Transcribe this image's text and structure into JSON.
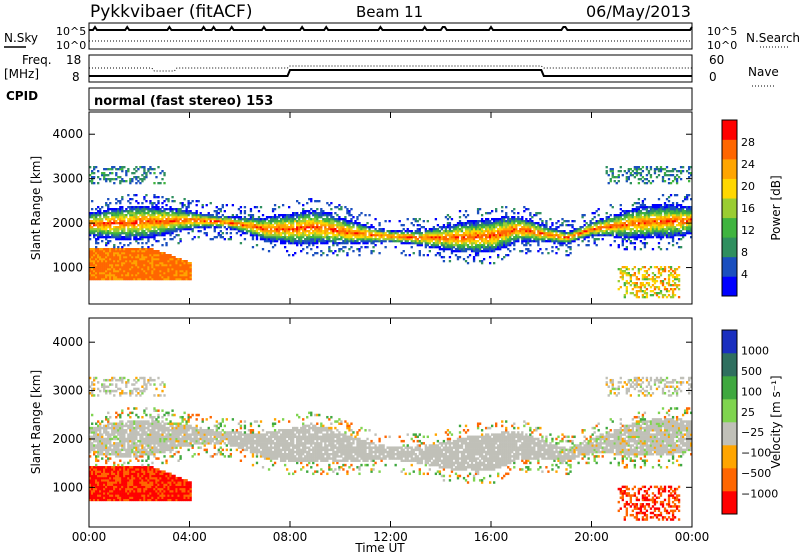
{
  "header": {
    "station": "Pykkvibaer (fitACF)",
    "beam": "Beam 11",
    "date": "06/May/2013"
  },
  "strips": {
    "nsky_label": "N.Sky",
    "nsearch_label": "N.Search",
    "freq_label_1": "Freq.",
    "freq_label_2": "[MHz]",
    "nave_label": "Nave",
    "cpid_label": "CPID",
    "cpid_value": "normal (fast stereo) 153",
    "noise_left_ticks": [
      "10^5",
      "10^0"
    ],
    "noise_right_ticks": [
      "10^5",
      "10^0"
    ],
    "freq_left_ticks": [
      "18",
      "8"
    ],
    "freq_right_ticks": [
      "60",
      "0"
    ]
  },
  "chart_data": [
    {
      "type": "heatmap",
      "panel": "power",
      "ylabel": "Slant Range [km]",
      "ylim": [
        180,
        4500
      ],
      "yticks": [
        "4000",
        "3000",
        "2000",
        "1000"
      ],
      "xlim": [
        "00:00",
        "24:00"
      ],
      "colorbar": {
        "label": "Power [dB]",
        "tick_labels": [
          "28",
          "24",
          "20",
          "16",
          "12",
          "8",
          "4"
        ],
        "colors": [
          "#0000ff",
          "#1a4fbf",
          "#2f8f5f",
          "#3fb43f",
          "#9acd32",
          "#ffd700",
          "#ffa500",
          "#ff6600",
          "#ff0000"
        ]
      },
      "scatter_band": {
        "centre_km": [
          [
            0,
            1950
          ],
          [
            2,
            2000
          ],
          [
            4,
            2050
          ],
          [
            5.5,
            2000
          ],
          [
            7,
            1850
          ],
          [
            8,
            1850
          ],
          [
            9,
            1900
          ],
          [
            10,
            1800
          ],
          [
            11.5,
            1700
          ],
          [
            13,
            1650
          ],
          [
            14.5,
            1650
          ],
          [
            16,
            1700
          ],
          [
            17,
            1850
          ],
          [
            18,
            1750
          ],
          [
            19,
            1650
          ],
          [
            20,
            1850
          ],
          [
            22,
            2000
          ],
          [
            24,
            2050
          ]
        ],
        "near_range_patch": {
          "hours": [
            0,
            4
          ],
          "km": [
            700,
            1400
          ],
          "power_db": 28
        }
      }
    },
    {
      "type": "heatmap",
      "panel": "velocity",
      "ylabel": "Slant Range [km]",
      "ylim": [
        180,
        4500
      ],
      "yticks": [
        "4000",
        "3000",
        "2000",
        "1000"
      ],
      "xlim": [
        "00:00",
        "24:00"
      ],
      "xlabel": "Time UT",
      "xticks": [
        "00:00",
        "04:00",
        "08:00",
        "12:00",
        "16:00",
        "20:00",
        "00:00"
      ],
      "colorbar": {
        "label": "Velocity [m s⁻¹]",
        "tick_labels": [
          "1000",
          "500",
          "100",
          "25",
          "−25",
          "−100",
          "−500",
          "−1000"
        ],
        "colors": [
          "#1a2fbf",
          "#2f6f5f",
          "#3fa83f",
          "#7fd44f",
          "#c0c0b8",
          "#ffa500",
          "#ff6600",
          "#ff0000"
        ]
      },
      "ground_scatter_color": "#c0c0b8"
    }
  ]
}
